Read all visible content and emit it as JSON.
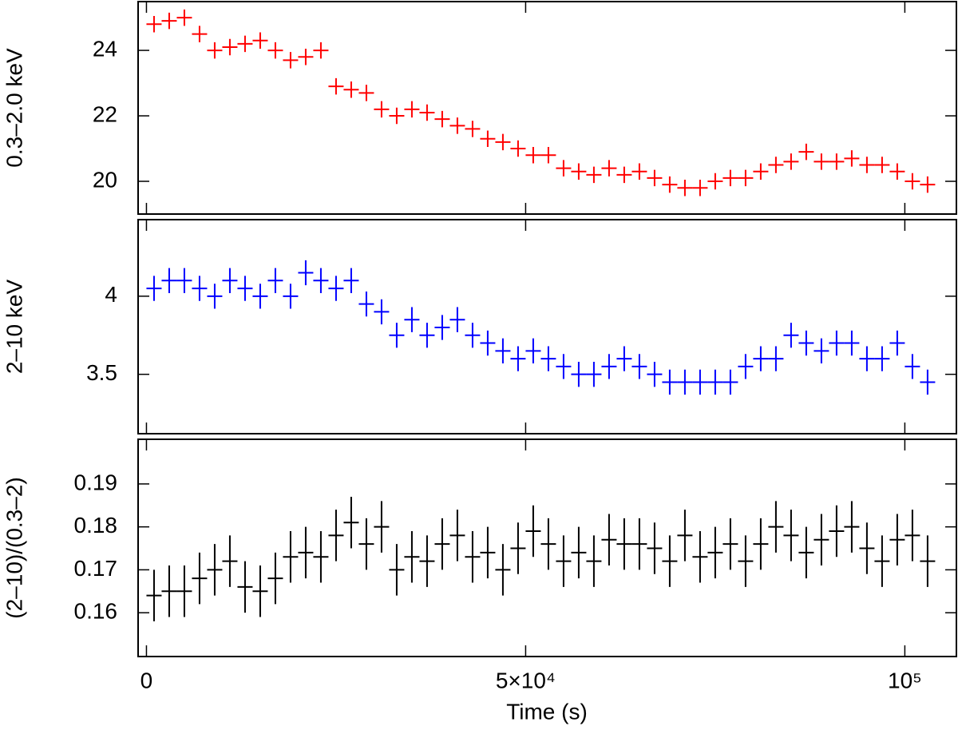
{
  "chart_data": {
    "type": "errorbar",
    "xlabel": "Time (s)",
    "xlim": [
      -1100,
      106800
    ],
    "xticks": [
      0,
      {
        "value": 50000,
        "label": "5×10⁴"
      },
      {
        "value": 100000,
        "label": "10⁵"
      }
    ],
    "x": [
      1000,
      3000,
      5000,
      7000,
      9000,
      11000,
      13000,
      15000,
      17000,
      19000,
      21000,
      23000,
      25000,
      27000,
      29000,
      31000,
      33000,
      35000,
      37000,
      39000,
      41000,
      43000,
      45000,
      47000,
      49000,
      51000,
      53000,
      55000,
      57000,
      59000,
      61000,
      63000,
      65000,
      67000,
      69000,
      71000,
      73000,
      75000,
      77000,
      79000,
      81000,
      83000,
      85000,
      87000,
      89000,
      91000,
      93000,
      95000,
      97000,
      99000,
      101000,
      103000
    ],
    "panels": [
      {
        "ylabel": "0.3–2.0 keV",
        "color": "#ff0000",
        "error": 0.25,
        "ylim": [
          19.0,
          25.49
        ],
        "yticks": [
          20,
          22,
          24
        ],
        "values": [
          24.8,
          24.9,
          25.0,
          24.5,
          24.0,
          24.1,
          24.2,
          24.3,
          24.0,
          23.7,
          23.8,
          24.0,
          22.9,
          22.8,
          22.7,
          22.2,
          22.0,
          22.2,
          22.1,
          21.9,
          21.7,
          21.6,
          21.3,
          21.2,
          21.0,
          20.8,
          20.8,
          20.4,
          20.3,
          20.2,
          20.4,
          20.2,
          20.3,
          20.1,
          19.9,
          19.8,
          19.8,
          20.0,
          20.1,
          20.1,
          20.3,
          20.5,
          20.6,
          20.9,
          20.6,
          20.6,
          20.7,
          20.5,
          20.5,
          20.3,
          20.0,
          19.9
        ]
      },
      {
        "ylabel": "2–10 keV",
        "color": "#0000ff",
        "error": 0.08,
        "ylim": [
          3.12,
          4.49
        ],
        "yticks": [
          3.5,
          4
        ],
        "values": [
          4.05,
          4.1,
          4.1,
          4.05,
          4.0,
          4.1,
          4.05,
          4.0,
          4.1,
          4.0,
          4.15,
          4.1,
          4.05,
          4.1,
          3.95,
          3.9,
          3.75,
          3.85,
          3.75,
          3.8,
          3.85,
          3.75,
          3.7,
          3.65,
          3.6,
          3.65,
          3.6,
          3.55,
          3.5,
          3.5,
          3.55,
          3.6,
          3.55,
          3.5,
          3.45,
          3.45,
          3.45,
          3.45,
          3.45,
          3.55,
          3.6,
          3.6,
          3.75,
          3.7,
          3.65,
          3.7,
          3.7,
          3.6,
          3.6,
          3.7,
          3.55,
          3.45
        ]
      },
      {
        "ylabel": "(2–10)/(0.3–2)",
        "color": "#000000",
        "error": 0.006,
        "ylim": [
          0.1498,
          0.2004
        ],
        "yticks": [
          0.16,
          0.17,
          0.18,
          0.19
        ],
        "values": [
          0.164,
          0.165,
          0.165,
          0.168,
          0.17,
          0.172,
          0.166,
          0.165,
          0.168,
          0.173,
          0.174,
          0.173,
          0.178,
          0.181,
          0.176,
          0.18,
          0.17,
          0.173,
          0.172,
          0.176,
          0.178,
          0.173,
          0.174,
          0.17,
          0.175,
          0.179,
          0.176,
          0.172,
          0.174,
          0.172,
          0.177,
          0.176,
          0.176,
          0.175,
          0.172,
          0.178,
          0.173,
          0.174,
          0.176,
          0.172,
          0.176,
          0.18,
          0.178,
          0.174,
          0.177,
          0.179,
          0.18,
          0.175,
          0.172,
          0.177,
          0.178,
          0.172
        ]
      }
    ]
  }
}
